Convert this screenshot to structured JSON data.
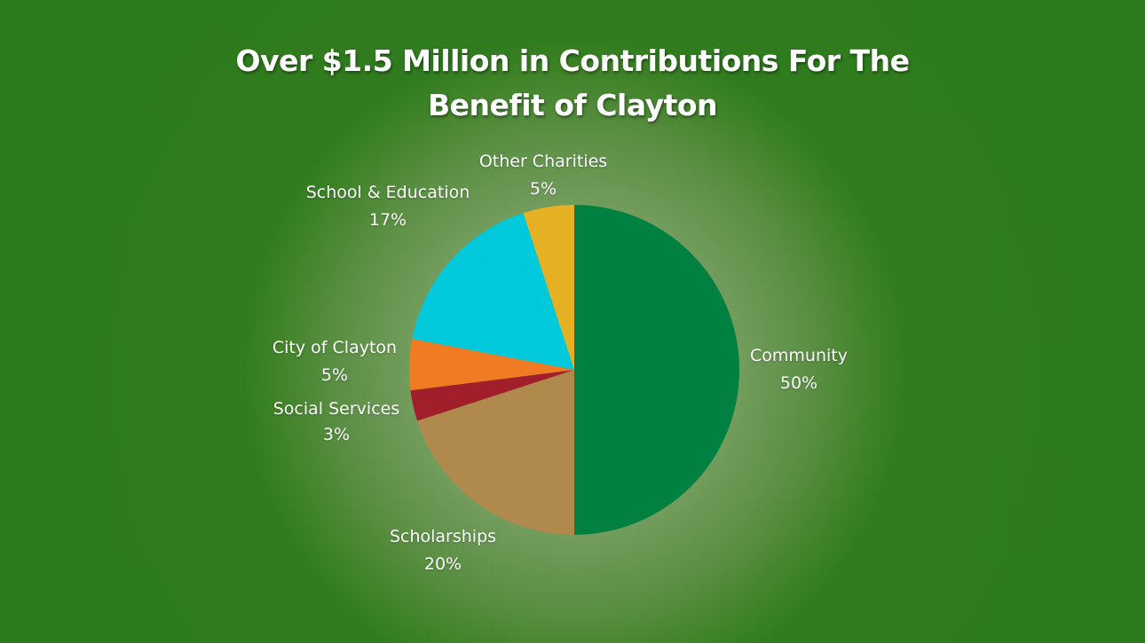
{
  "chart_data": {
    "type": "pie",
    "title": "Over $1.5 Million in Contributions For The Benefit of Clayton",
    "title_lines": [
      "Over $1.5 Million in Contributions For The",
      "Benefit of Clayton"
    ],
    "slices": [
      {
        "name": "Community",
        "value": 50,
        "label": "50%",
        "color": "#008142"
      },
      {
        "name": "Scholarships",
        "value": 20,
        "label": "20%",
        "color": "#b08a4d"
      },
      {
        "name": "Social Services",
        "value": 3,
        "label": "3%",
        "color": "#a01f2b"
      },
      {
        "name": "City of Clayton",
        "value": 5,
        "label": "5%",
        "color": "#f07b22"
      },
      {
        "name": "School & Education",
        "value": 17,
        "label": "17%",
        "color": "#00c9db"
      },
      {
        "name": "Other Charities",
        "value": 5,
        "label": "5%",
        "color": "#e5b024"
      }
    ],
    "legend": "none"
  }
}
